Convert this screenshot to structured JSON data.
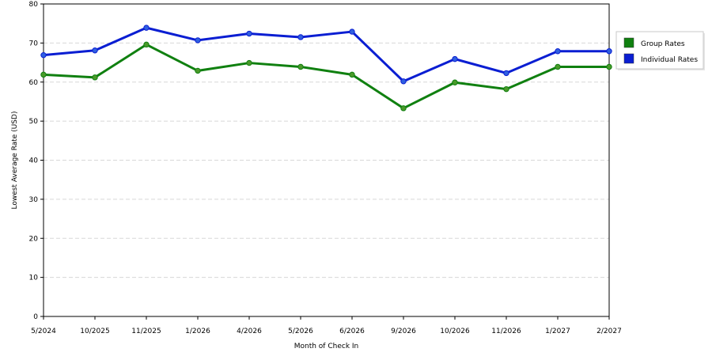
{
  "chart_data": {
    "type": "line",
    "title": "",
    "xlabel": "Month of Check In",
    "ylabel": "Lowest Average Rate (USD)",
    "ylim": [
      0,
      80
    ],
    "yticks": [
      0,
      10,
      20,
      30,
      40,
      50,
      60,
      70,
      80
    ],
    "grid": "horizontal-dashed",
    "legend_position": "right",
    "categories": [
      "5/2024",
      "10/2025",
      "11/2025",
      "1/2026",
      "4/2026",
      "5/2026",
      "6/2026",
      "9/2026",
      "10/2026",
      "11/2026",
      "1/2027",
      "2/2027"
    ],
    "series": [
      {
        "name": "Group Rates",
        "color": "#108010",
        "marker_color": "#4a9a2a",
        "values": [
          61.9,
          61.2,
          69.6,
          62.9,
          64.9,
          63.9,
          61.9,
          53.3,
          59.9,
          58.2,
          63.9,
          63.9
        ]
      },
      {
        "name": "Individual Rates",
        "color": "#0a1ed2",
        "marker_color": "#3060e0",
        "values": [
          66.9,
          68.1,
          73.9,
          70.7,
          72.4,
          71.5,
          72.9,
          60.2,
          65.9,
          62.3,
          67.9,
          67.9
        ]
      }
    ]
  }
}
